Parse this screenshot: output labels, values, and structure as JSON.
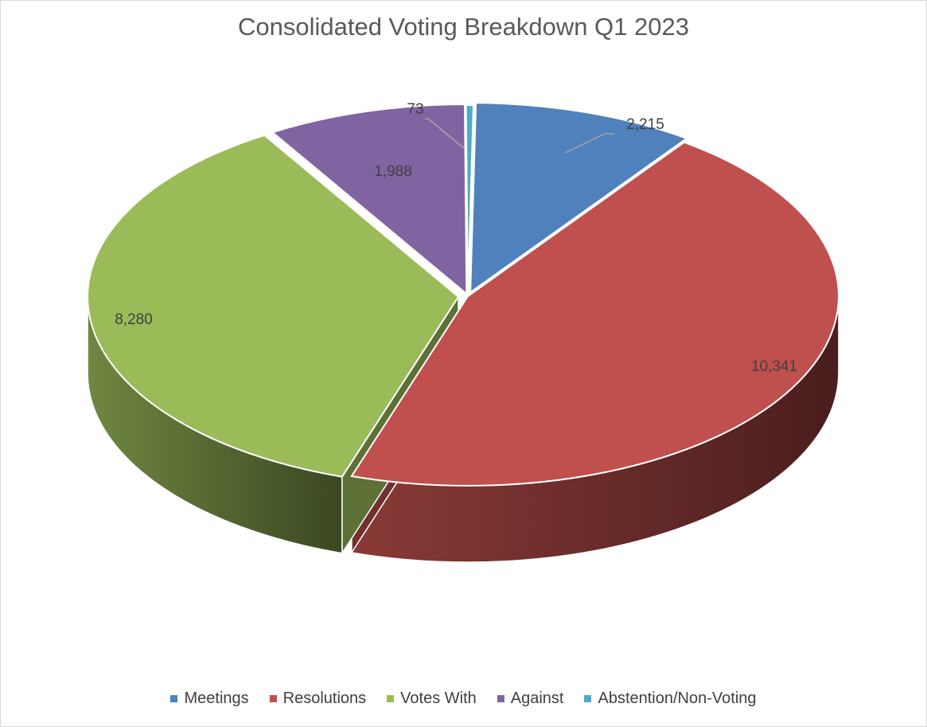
{
  "chart_data": {
    "type": "pie",
    "title": "Consolidated Voting Breakdown Q1 2023",
    "slices": [
      {
        "name": "Meetings",
        "value": 2215,
        "label": "2,215",
        "color": "#4f81bd"
      },
      {
        "name": "Resolutions",
        "value": 10341,
        "label": "10,341",
        "color": "#c0504d"
      },
      {
        "name": "Votes With",
        "value": 8280,
        "label": "8,280",
        "color": "#9bbb59"
      },
      {
        "name": "Against",
        "value": 1988,
        "label": "1,988",
        "color": "#8064a2"
      },
      {
        "name": "Abstention/Non-Voting",
        "value": 73,
        "label": "73",
        "color": "#4bacc6"
      }
    ],
    "legend_position": "bottom",
    "style": "3d-exploded"
  }
}
